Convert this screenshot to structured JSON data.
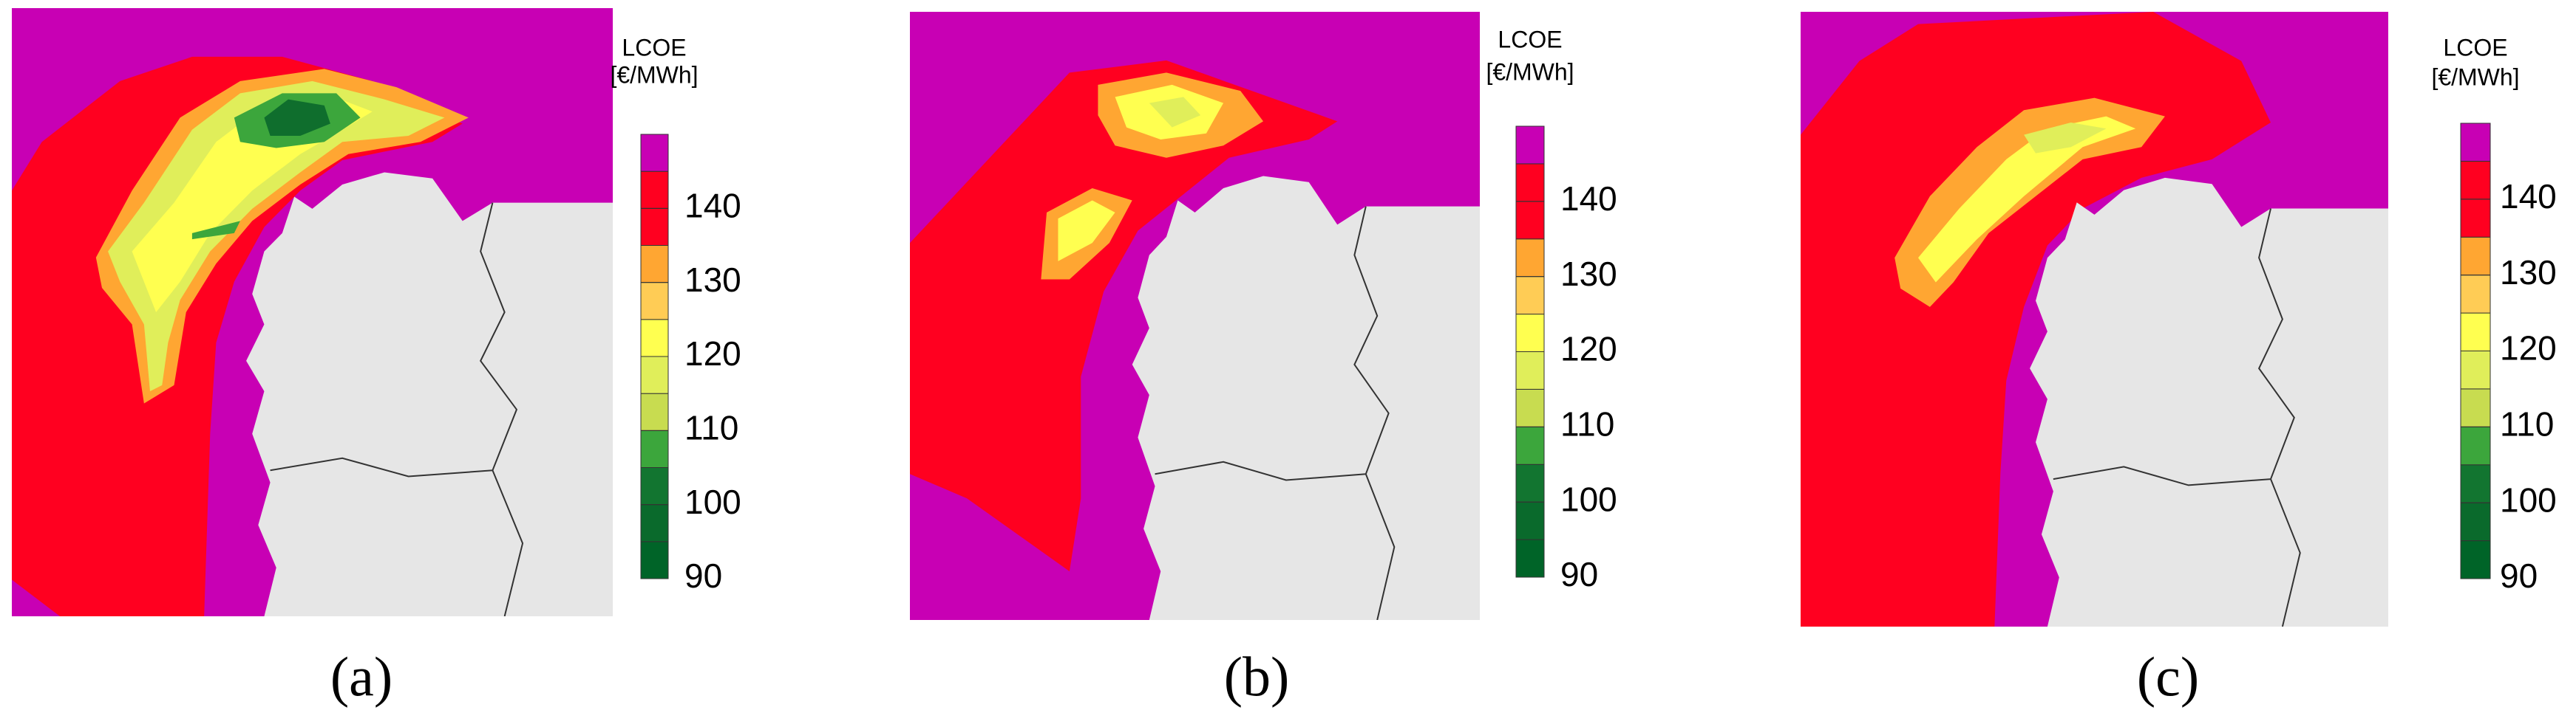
{
  "chart_data": {
    "type": "contour-map",
    "colorbar": {
      "title": "LCOE",
      "unit": "[€/MWh]",
      "levels": [
        90,
        95,
        100,
        105,
        110,
        115,
        120,
        125,
        130,
        135,
        140,
        145,
        150
      ],
      "colors": [
        "#006428",
        "#0a6a2c",
        "#127530",
        "#3ca63c",
        "#c8dc50",
        "#e0ee5a",
        "#ffff50",
        "#ffcc55",
        "#ffa632",
        "#ff0020",
        "#ff0020",
        "#c800b4"
      ],
      "lim": [
        90,
        150
      ],
      "ticks": [
        90,
        100,
        110,
        120,
        130,
        140
      ]
    },
    "panels": [
      {
        "label": "(a)"
      },
      {
        "label": "(b)"
      },
      {
        "label": "(c)"
      }
    ]
  }
}
